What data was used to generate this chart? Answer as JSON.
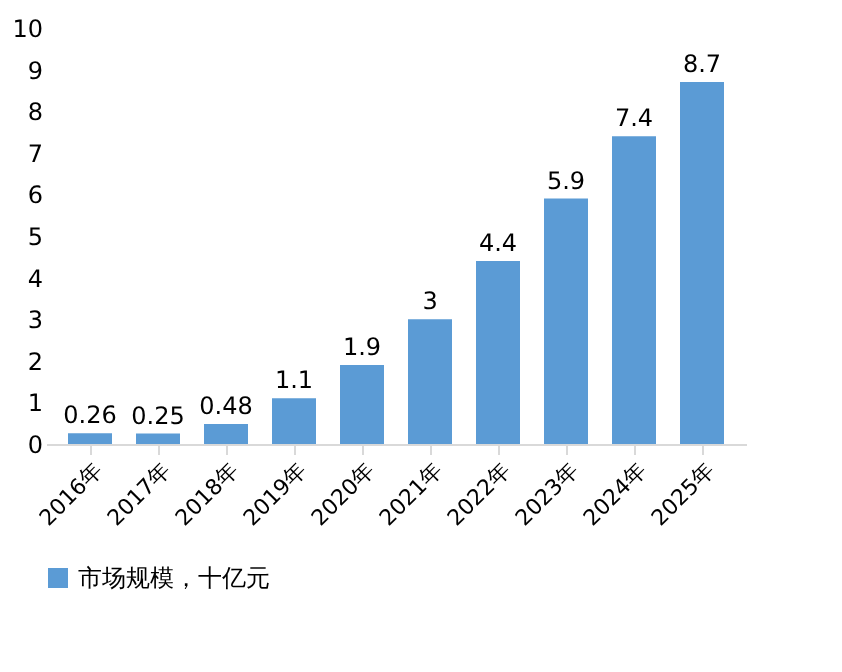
{
  "chart_data": {
    "type": "bar",
    "categories": [
      "2016年",
      "2017年",
      "2018年",
      "2019年",
      "2020年",
      "2021年",
      "2022年",
      "2023年",
      "2024年",
      "2025年"
    ],
    "series": [
      {
        "name": "市场规模，十亿元",
        "color": "#5b9bd5",
        "values": [
          0.26,
          0.25,
          0.48,
          1.1,
          1.9,
          3,
          4.4,
          5.9,
          7.4,
          8.7
        ]
      }
    ],
    "ylim": [
      0,
      10
    ],
    "yticks": [
      0,
      1,
      2,
      3,
      4,
      5,
      6,
      7,
      8,
      9,
      10
    ],
    "data_labels": true,
    "grid": false,
    "legend": "bottom"
  }
}
